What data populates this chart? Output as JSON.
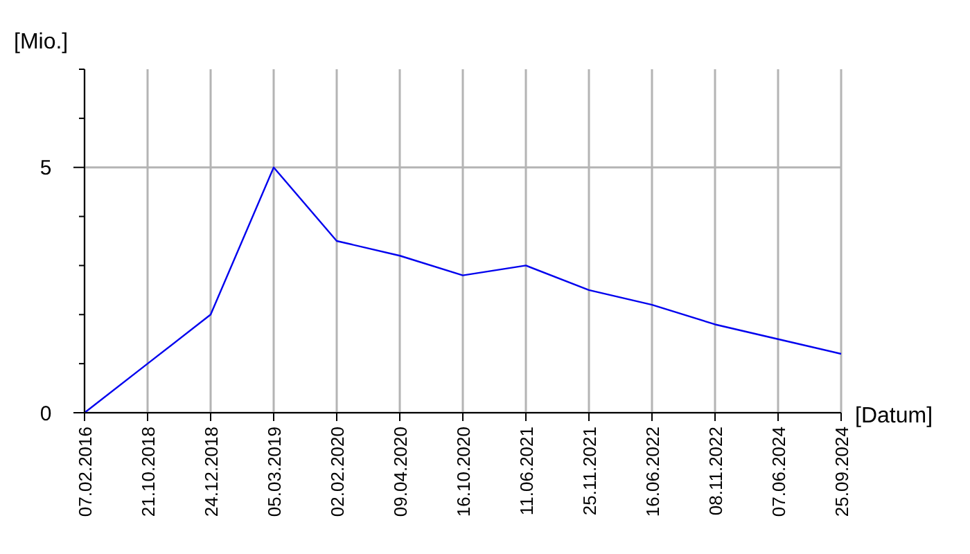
{
  "chart_data": {
    "type": "line",
    "ylabel": "[Mio.]",
    "xlabel": "[Datum]",
    "categories": [
      "07.02.2016",
      "21.10.2018",
      "24.12.2018",
      "05.03.2019",
      "02.02.2020",
      "09.04.2020",
      "16.10.2020",
      "11.06.2021",
      "25.11.2021",
      "16.06.2022",
      "08.11.2022",
      "07.06.2024",
      "25.09.2024"
    ],
    "series": [
      {
        "color": "#0000ee",
        "values": [
          0,
          1,
          2,
          5,
          3.5,
          3.2,
          2.8,
          3,
          2.5,
          2.2,
          1.8,
          1.5,
          1.2
        ]
      }
    ],
    "ylim": [
      0,
      7
    ],
    "yticks": [
      0,
      {
        "value": 1,
        "label": null
      },
      {
        "value": 2,
        "label": null
      },
      {
        "value": 3,
        "label": null
      },
      {
        "value": 4,
        "label": null
      },
      5,
      {
        "value": 6,
        "label": null
      },
      {
        "value": 7,
        "label": null
      }
    ],
    "grid": true,
    "marker": "none",
    "line_style": "solid"
  }
}
